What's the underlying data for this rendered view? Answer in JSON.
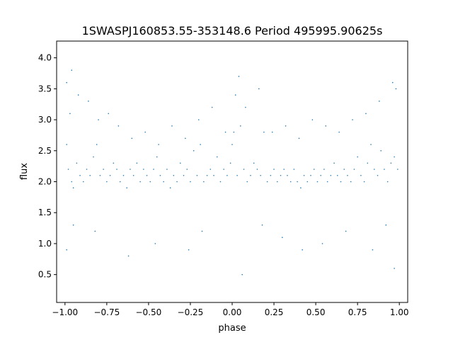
{
  "chart_data": {
    "type": "scatter",
    "title": "1SWASPJ160853.55-353148.6 Period 495995.90625s",
    "xlabel": "phase",
    "ylabel": "flux",
    "xlim": [
      -1.05,
      1.05
    ],
    "ylim": [
      0.05,
      4.27
    ],
    "x_ticks": [
      -1.0,
      -0.75,
      -0.5,
      -0.25,
      0.0,
      0.25,
      0.5,
      0.75,
      1.0
    ],
    "x_tick_labels": [
      "−1.00",
      "−0.75",
      "−0.50",
      "−0.25",
      "0.00",
      "0.25",
      "0.50",
      "0.75",
      "1.00"
    ],
    "y_ticks": [
      0.5,
      1.0,
      1.5,
      2.0,
      2.5,
      3.0,
      3.5,
      4.0
    ],
    "y_tick_labels": [
      "0.5",
      "1.0",
      "1.5",
      "2.0",
      "2.5",
      "3.0",
      "3.5",
      "4.0"
    ],
    "grid": false,
    "legend": "none",
    "marker_color": "#1f77b4",
    "series": [
      {
        "x": [
          -0.99,
          -0.98,
          -0.97,
          -0.96,
          -0.95,
          -0.93,
          -0.91,
          -0.89,
          -0.87,
          -0.85,
          -0.83,
          -0.81,
          -0.79,
          -0.77,
          -0.75,
          -0.73,
          -0.71,
          -0.69,
          -0.67,
          -0.65,
          -0.63,
          -0.61,
          -0.59,
          -0.57,
          -0.55,
          -0.53,
          -0.51,
          -0.49,
          -0.47,
          -0.45,
          -0.43,
          -0.41,
          -0.39,
          -0.37,
          -0.35,
          -0.33,
          -0.31,
          -0.29,
          -0.27,
          -0.25,
          -0.23,
          -0.21,
          -0.19,
          -0.17,
          -0.15,
          -0.13,
          -0.11,
          -0.09,
          -0.07,
          -0.05,
          -0.03,
          -0.01,
          0.0,
          0.01,
          0.03,
          0.05,
          0.07,
          0.09,
          0.11,
          0.13,
          0.15,
          0.17,
          0.19,
          0.21,
          0.23,
          0.25,
          0.27,
          0.29,
          0.31,
          0.33,
          0.35,
          0.37,
          0.39,
          0.41,
          0.43,
          0.45,
          0.47,
          0.49,
          0.51,
          0.53,
          0.55,
          0.57,
          0.59,
          0.61,
          0.63,
          0.65,
          0.67,
          0.69,
          0.71,
          0.73,
          0.75,
          0.77,
          0.79,
          0.81,
          0.83,
          0.85,
          0.87,
          0.89,
          0.91,
          0.93,
          0.95,
          0.97,
          0.99,
          -0.99,
          -0.96,
          -0.92,
          -0.86,
          -0.8,
          -0.74,
          -0.68,
          -0.6,
          -0.52,
          -0.44,
          -0.36,
          -0.28,
          -0.2,
          -0.12,
          -0.04,
          0.02,
          0.04,
          0.08,
          0.16,
          0.24,
          0.32,
          0.4,
          0.48,
          0.56,
          0.64,
          0.72,
          0.8,
          0.88,
          0.96,
          0.98,
          -0.99,
          -0.95,
          -0.82,
          -0.62,
          -0.46,
          -0.26,
          -0.18,
          0.06,
          0.18,
          0.3,
          0.42,
          0.54,
          0.68,
          0.84,
          0.92,
          0.97
        ],
        "y": [
          2.6,
          2.2,
          3.1,
          2.0,
          1.9,
          2.3,
          2.1,
          2.0,
          2.2,
          2.1,
          2.4,
          2.6,
          2.1,
          2.2,
          2.0,
          2.1,
          2.3,
          2.2,
          2.0,
          2.1,
          1.9,
          2.2,
          2.1,
          2.3,
          2.0,
          2.2,
          2.1,
          2.0,
          2.2,
          2.4,
          2.1,
          2.0,
          2.2,
          1.9,
          2.1,
          2.0,
          2.3,
          2.1,
          2.2,
          2.0,
          2.5,
          2.1,
          2.6,
          2.0,
          2.1,
          2.2,
          2.1,
          2.4,
          2.0,
          2.2,
          2.1,
          2.3,
          2.6,
          2.8,
          2.1,
          2.9,
          2.2,
          2.0,
          2.1,
          2.3,
          2.2,
          2.1,
          2.8,
          2.0,
          2.1,
          2.2,
          2.0,
          2.1,
          2.2,
          2.1,
          2.0,
          2.2,
          2.0,
          1.9,
          2.1,
          2.0,
          2.1,
          2.2,
          2.0,
          2.1,
          2.2,
          2.0,
          2.1,
          2.3,
          2.1,
          2.0,
          2.2,
          2.1,
          2.0,
          2.2,
          2.4,
          2.1,
          2.0,
          2.3,
          2.6,
          2.2,
          2.1,
          2.5,
          2.2,
          2.0,
          2.3,
          2.4,
          2.2,
          3.6,
          3.8,
          3.4,
          3.3,
          3.0,
          3.1,
          2.9,
          2.7,
          2.8,
          2.6,
          2.9,
          2.7,
          3.0,
          3.2,
          2.8,
          3.4,
          3.7,
          3.2,
          3.5,
          2.8,
          2.9,
          2.7,
          3.0,
          2.9,
          2.8,
          3.0,
          3.1,
          3.3,
          3.6,
          3.5,
          0.9,
          1.3,
          1.2,
          0.8,
          1.0,
          0.9,
          1.2,
          0.5,
          1.3,
          1.1,
          0.9,
          1.0,
          1.2,
          0.9,
          1.3,
          0.6
        ]
      }
    ]
  }
}
